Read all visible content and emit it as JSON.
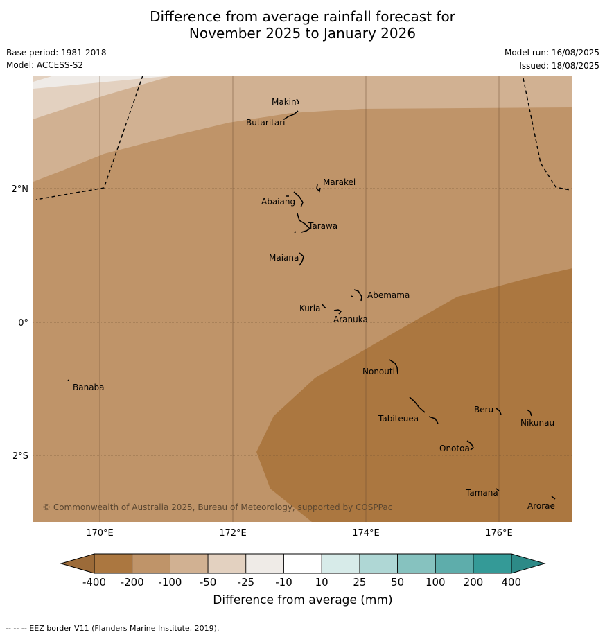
{
  "title": {
    "line1": "Difference from average rainfall forecast for",
    "line2": "November 2025 to January 2026"
  },
  "meta": {
    "base_period": "Base period: 1981-2018",
    "model": "Model: ACCESS-S2",
    "model_run": "Model run: 16/08/2025",
    "issued": "Issued: 18/08/2025"
  },
  "map": {
    "longitude_ticks": [
      "170°E",
      "172°E",
      "174°E",
      "176°E"
    ],
    "latitude_ticks": [
      "2°N",
      "0°",
      "2°S"
    ],
    "copyright": "© Commonwealth of Australia 2025, Bureau of Meteorology, supported by COSPPac",
    "places": [
      {
        "name": "Makin"
      },
      {
        "name": "Butaritari"
      },
      {
        "name": "Marakei"
      },
      {
        "name": "Abaiang"
      },
      {
        "name": "Tarawa"
      },
      {
        "name": "Maiana"
      },
      {
        "name": "Abemama"
      },
      {
        "name": "Kuria"
      },
      {
        "name": "Aranuka"
      },
      {
        "name": "Nonouti"
      },
      {
        "name": "Banaba"
      },
      {
        "name": "Beru"
      },
      {
        "name": "Tabiteuea"
      },
      {
        "name": "Nikunau"
      },
      {
        "name": "Onotoa"
      },
      {
        "name": "Tamana"
      },
      {
        "name": "Arorae"
      }
    ],
    "fill_colors": {
      "minus_400": "#ab7740",
      "minus_200": "#bf9469",
      "minus_100": "#d1b192",
      "minus_50": "#e3d1c0",
      "minus_25": "#efebe7"
    }
  },
  "colorbar": {
    "title": "Difference from average (mm)",
    "labels": [
      "-400",
      "-200",
      "-100",
      "-50",
      "-25",
      "-10",
      "10",
      "25",
      "50",
      "100",
      "200",
      "400"
    ],
    "colors": [
      "#ab7740",
      "#bf9469",
      "#d1b192",
      "#e3d1c0",
      "#efebe7",
      "#ffffff",
      "#d7ebe9",
      "#afd7d5",
      "#86c2bf",
      "#5eadab",
      "#349a97"
    ],
    "low_extend_color": "#9c6b39",
    "high_extend_color": "#2d8a87"
  },
  "footnote": "--  --  -- EEZ border V11 (Flanders Marine Institute, 2019)."
}
